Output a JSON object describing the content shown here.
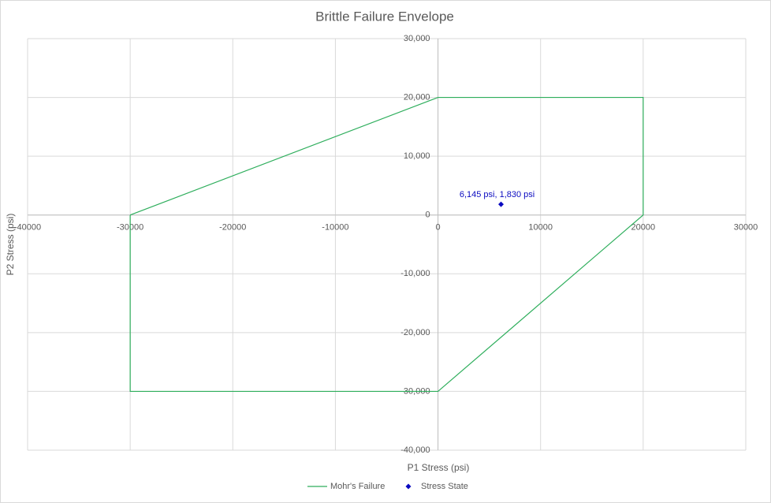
{
  "chart_data": {
    "type": "scatter",
    "title": "Brittle Failure Envelope",
    "x_label": "P1 Stress (psi)",
    "y_label": "P2 Stress (psi)",
    "xlim": [
      -40000,
      30000
    ],
    "ylim": [
      -40000,
      30000
    ],
    "xticks": [
      -40000,
      -30000,
      -20000,
      -10000,
      0,
      10000,
      20000,
      30000
    ],
    "yticks": [
      {
        "value": -40000,
        "label": "-40,000"
      },
      {
        "value": -30000,
        "label": "-30,000"
      },
      {
        "value": -20000,
        "label": "-20,000"
      },
      {
        "value": -10000,
        "label": "-10,000"
      },
      0,
      {
        "value": 10000,
        "label": "10,000"
      },
      {
        "value": 20000,
        "label": "20,000"
      },
      {
        "value": 30000,
        "label": "30,000"
      }
    ],
    "grid": true,
    "legend": "bottom",
    "series": [
      {
        "name": "Mohr's Failure",
        "color": "#2eae5c",
        "mode": "line",
        "x": [
          -30000,
          0,
          20000,
          20000,
          0,
          -30000,
          -30000
        ],
        "values": [
          0,
          20000,
          20000,
          0,
          -30000,
          -30000,
          0
        ]
      },
      {
        "name": "Stress State",
        "color": "#0a0ac0",
        "mode": "marker",
        "x": [
          6145
        ],
        "values": [
          1830
        ],
        "value_labels": [
          "6,145 psi, 1,830 psi"
        ]
      }
    ]
  }
}
